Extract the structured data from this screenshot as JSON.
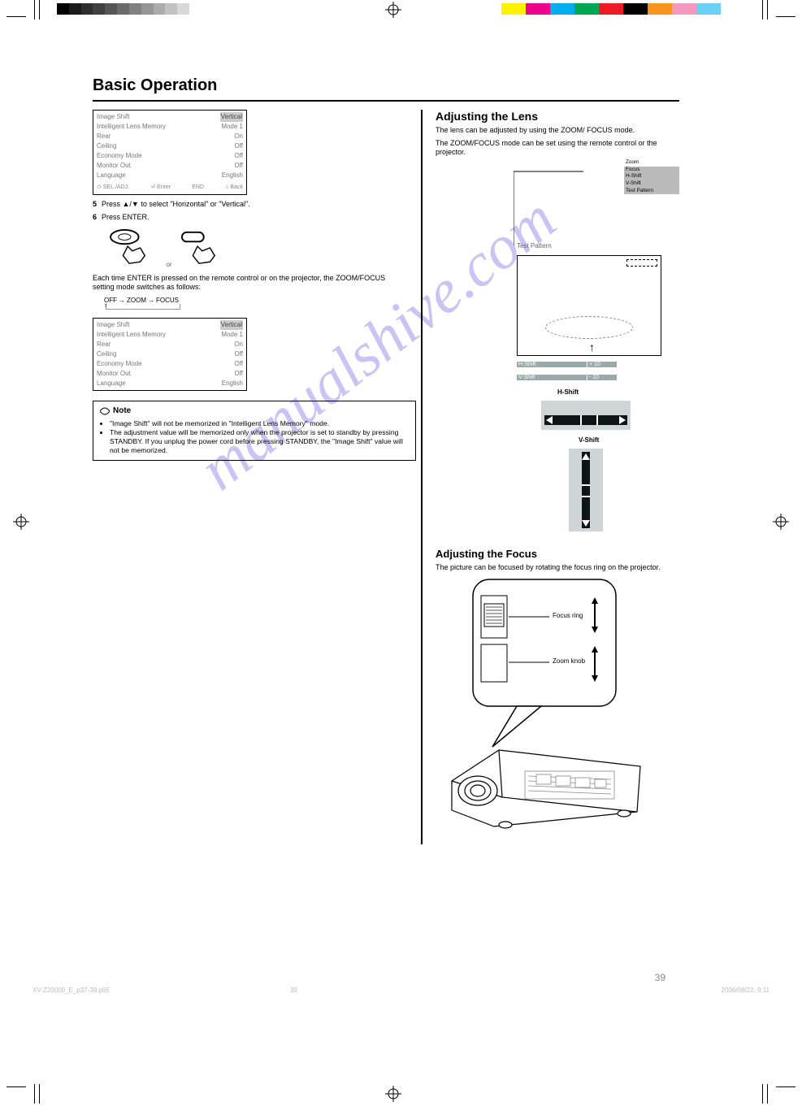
{
  "print_marks": {
    "gray_swatches": [
      "#000000",
      "#1a1a1a",
      "#2e2e2e",
      "#404040",
      "#555555",
      "#6a6a6a",
      "#808080",
      "#969696",
      "#acacac",
      "#c2c2c2",
      "#d8d8d8",
      "#ffffff"
    ],
    "color_swatches": [
      "#fff200",
      "#ec008c",
      "#00aeef",
      "#00a651",
      "#ed1c24",
      "#000000",
      "#f7941d",
      "#f49ac1",
      "#6dcff6",
      "#ffffff"
    ]
  },
  "header": {
    "section": "Basic Operation",
    "rule_color": "#000000"
  },
  "left": {
    "menu1": {
      "items": [
        {
          "k": "Image Shift",
          "v": "Vertical"
        },
        {
          "k": "Intelligent Lens Memory",
          "v": "Mode 1"
        },
        {
          "k": "Rear",
          "v": "On"
        },
        {
          "k": "Ceiling",
          "v": "Off"
        },
        {
          "k": "Economy Mode",
          "v": "Off"
        },
        {
          "k": "Monitor Out",
          "v": "Off"
        },
        {
          "k": "Language",
          "v": "English"
        }
      ],
      "highlight_index": 0,
      "footer_left": "SEL./ADJ.",
      "footer_mid": "Enter",
      "footer_right": "END",
      "footer_back": "Back"
    },
    "step5a": {
      "n": "5",
      "text": "Press ▲/▼ to select \"Horizontal\" or \"Vertical\"."
    },
    "step6": {
      "n": "6",
      "text": "Press ENTER."
    },
    "or_text": "or",
    "step5b_intro": "Each time ENTER is pressed on the remote control or on the projector, the ZOOM/FOCUS setting mode switches as follows:",
    "cycle": [
      "OFF",
      "ZOOM",
      "FOCUS"
    ],
    "menu2": {
      "items": [
        {
          "k": "Image Shift",
          "v": "Vertical"
        },
        {
          "k": "Intelligent Lens Memory",
          "v": "Mode 1"
        },
        {
          "k": "Rear",
          "v": "On"
        },
        {
          "k": "Ceiling",
          "v": "Off"
        },
        {
          "k": "Economy Mode",
          "v": "Off"
        },
        {
          "k": "Monitor Out",
          "v": "Off"
        },
        {
          "k": "Language",
          "v": "English"
        }
      ],
      "highlight_index": 0
    },
    "note_box": {
      "title": "Note",
      "bullets": [
        "\"Image Shift\" will not be memorized in \"Intelligent Lens Memory\" mode.",
        "The adjustment value will be memorized only when the projector is set to standby by pressing STANDBY. If you unplug the power cord before pressing STANDBY, the \"Image Shift\" value will not be memorized."
      ]
    }
  },
  "right": {
    "heading": "Adjusting the Lens",
    "intro": [
      "The lens can be adjusted by using the ZOOM/ FOCUS mode.",
      "The ZOOM/FOCUS mode can be set using the remote control or the projector."
    ],
    "mini_menu_items": [
      "Zoom",
      "Focus",
      "H-Shift",
      "V-Shift",
      "Test Pattern"
    ],
    "screen_label": "Test Pattern",
    "dash_label": "",
    "bar1": {
      "label": "H-Shift",
      "value": "+ 10"
    },
    "bar2": {
      "label": "V-Shift",
      "value": "- 10"
    },
    "hshift_title": "H-Shift",
    "vshift_title": "V-Shift",
    "adjust_heading": "Adjusting the Focus",
    "adjust_text": "The picture can be focused by rotating the focus ring on the projector.",
    "focus_ring_label": "Focus ring",
    "zoom_knob_label": "Zoom knob"
  },
  "footer": {
    "page_num": "39",
    "filepath": "XV-Z20000_E_p37-39.p65",
    "filedate": "2006/08/22, 9:11",
    "filepage": "39"
  },
  "watermark": "manualshive.com"
}
